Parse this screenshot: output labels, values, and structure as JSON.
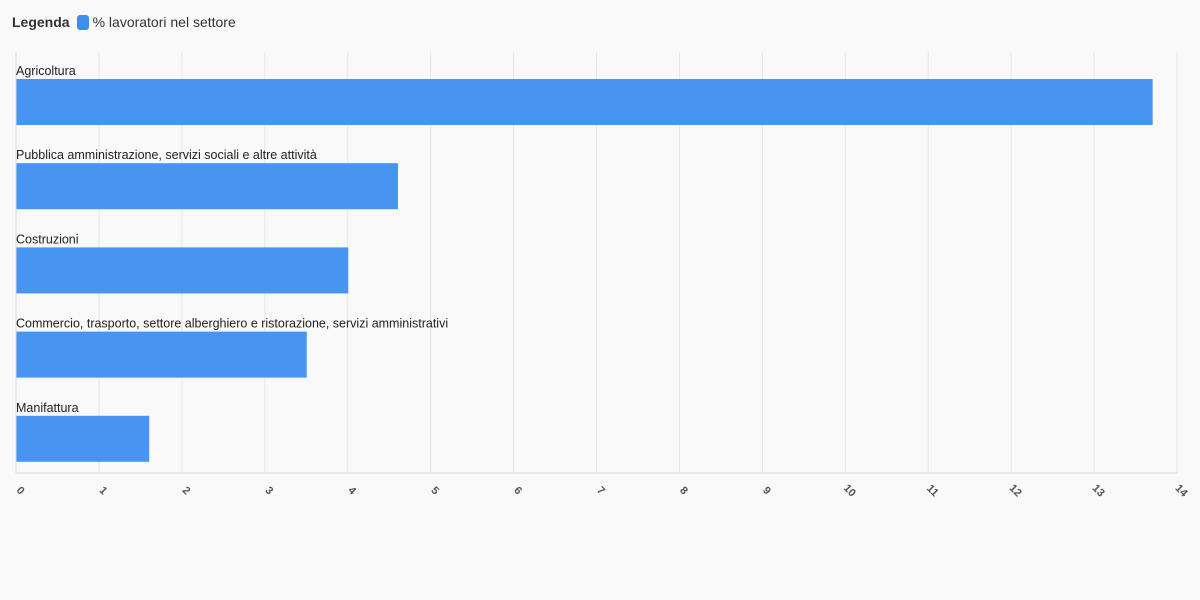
{
  "legend": {
    "title": "Legenda",
    "items": [
      {
        "label": "% lavoratori nel settore",
        "color": "#3d8fef"
      }
    ]
  },
  "colors": {
    "bar": "#3d8fef",
    "grid": "#e6e6e6",
    "axis": "#d9d9d9"
  },
  "chart_data": {
    "type": "bar",
    "orientation": "horizontal",
    "title": "",
    "xlabel": "",
    "ylabel": "",
    "xlim": [
      0,
      14
    ],
    "ticks": [
      "0",
      "1",
      "2",
      "3",
      "4",
      "5",
      "6",
      "7",
      "8",
      "9",
      "10",
      "11",
      "12",
      "13",
      "14"
    ],
    "grid": true,
    "legend_position": "top-left",
    "categories": [
      "Agricoltura",
      "Pubblica amministrazione, servizi sociali e altre attività",
      "Costruzioni",
      "Commercio, trasporto, settore alberghiero e ristorazione, servizi amministrativi",
      "Manifattura"
    ],
    "series": [
      {
        "name": "% lavoratori nel settore",
        "values": [
          13.7,
          4.6,
          4.0,
          3.5,
          1.6
        ]
      }
    ]
  }
}
